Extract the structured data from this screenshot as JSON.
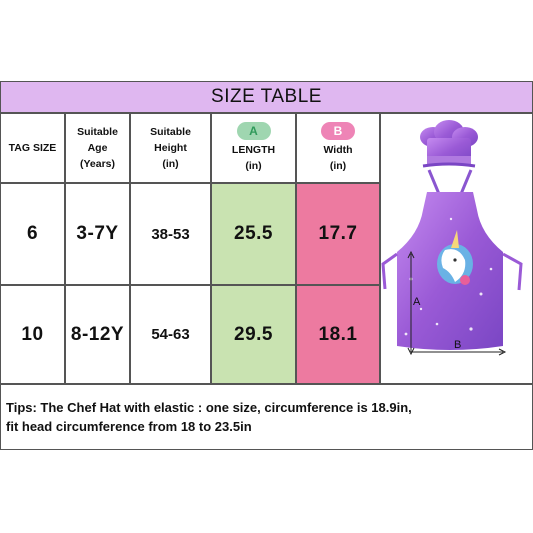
{
  "title": "SIZE TABLE",
  "headers": {
    "tag_size": "TAG SIZE",
    "age_line1": "Suitable Age",
    "age_line2": "(Years)",
    "height_line1": "Suitable",
    "height_line2": "Height",
    "height_line3": "(in)",
    "length_badge": "A",
    "length_line1": "LENGTH",
    "length_line2": "(in)",
    "width_badge": "B",
    "width_line1": "Width",
    "width_line2": "(in)"
  },
  "rows": [
    {
      "tag": "6",
      "age": "3-7Y",
      "height": "38-53",
      "length": "25.5",
      "width": "17.7"
    },
    {
      "tag": "10",
      "age": "8-12Y",
      "height": "54-63",
      "length": "29.5",
      "width": "18.1"
    }
  ],
  "diagram": {
    "label_a": "A",
    "label_b": "B"
  },
  "tips": {
    "line1": "Tips:  The Chef Hat with elastic : one size, circumference is 18.9in,",
    "line2": "fit head circumference from 18 to 23.5in"
  },
  "colors": {
    "title_bg": "#dfb7f0",
    "length_bg": "#c9e3b1",
    "width_bg": "#ed7aa0",
    "apron_purple": "#9a5ad6"
  }
}
